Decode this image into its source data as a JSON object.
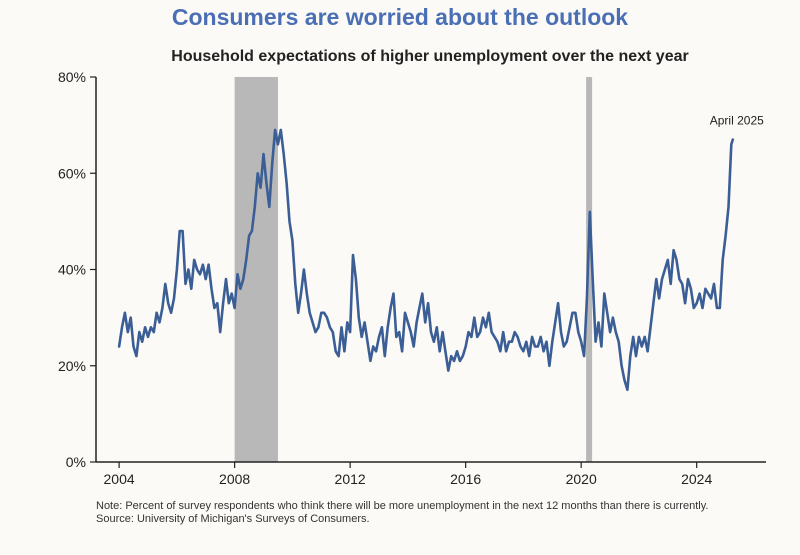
{
  "title": "Consumers are worried about the outlook",
  "subtitle": "Household expectations of higher unemployment over the next year",
  "note": "Note: Percent of survey respondents who think there will be more unemployment in the next 12 months than there is currently.",
  "source": "Source: University of Michigan's Surveys of Consumers.",
  "colors": {
    "title": "#4a6fb5",
    "line": "#3b5e96",
    "recession": "#b8b8b8",
    "axis": "#222222"
  },
  "chart_data": {
    "type": "line",
    "title": "Household expectations of higher unemployment over the next year",
    "xlabel": "",
    "ylabel": "",
    "xlim": [
      2003.2,
      2026.4
    ],
    "ylim": [
      0,
      80
    ],
    "x_ticks": [
      2004,
      2008,
      2012,
      2016,
      2020,
      2024
    ],
    "x_tick_labels": [
      "2004",
      "2008",
      "2012",
      "2016",
      "2020",
      "2024"
    ],
    "y_ticks": [
      0,
      20,
      40,
      60,
      80
    ],
    "y_tick_labels": [
      "0%",
      "20%",
      "40%",
      "60%",
      "80%"
    ],
    "grid": false,
    "shaded_periods": [
      [
        2008.0,
        2009.5
      ],
      [
        2020.17,
        2020.33
      ]
    ],
    "annotation": {
      "text": "April 2025",
      "x": 2025.25,
      "y": 67
    },
    "series": [
      {
        "values": [
          [
            2004.0,
            24
          ],
          [
            2004.1,
            28
          ],
          [
            2004.2,
            31
          ],
          [
            2004.3,
            27
          ],
          [
            2004.4,
            30
          ],
          [
            2004.5,
            24
          ],
          [
            2004.6,
            22
          ],
          [
            2004.7,
            27
          ],
          [
            2004.8,
            25
          ],
          [
            2004.9,
            28
          ],
          [
            2005.0,
            26
          ],
          [
            2005.1,
            28
          ],
          [
            2005.2,
            27
          ],
          [
            2005.3,
            31
          ],
          [
            2005.4,
            29
          ],
          [
            2005.5,
            32
          ],
          [
            2005.6,
            37
          ],
          [
            2005.7,
            33
          ],
          [
            2005.8,
            31
          ],
          [
            2005.9,
            34
          ],
          [
            2006.0,
            40
          ],
          [
            2006.1,
            48
          ],
          [
            2006.2,
            48
          ],
          [
            2006.3,
            37
          ],
          [
            2006.4,
            40
          ],
          [
            2006.5,
            36
          ],
          [
            2006.6,
            42
          ],
          [
            2006.7,
            40
          ],
          [
            2006.8,
            39
          ],
          [
            2006.9,
            41
          ],
          [
            2007.0,
            38
          ],
          [
            2007.1,
            41
          ],
          [
            2007.2,
            36
          ],
          [
            2007.3,
            32
          ],
          [
            2007.4,
            33
          ],
          [
            2007.5,
            27
          ],
          [
            2007.6,
            33
          ],
          [
            2007.7,
            38
          ],
          [
            2007.8,
            33
          ],
          [
            2007.9,
            35
          ],
          [
            2008.0,
            32
          ],
          [
            2008.1,
            39
          ],
          [
            2008.2,
            36
          ],
          [
            2008.3,
            38
          ],
          [
            2008.4,
            42
          ],
          [
            2008.5,
            47
          ],
          [
            2008.6,
            48
          ],
          [
            2008.7,
            53
          ],
          [
            2008.8,
            60
          ],
          [
            2008.9,
            57
          ],
          [
            2009.0,
            64
          ],
          [
            2009.1,
            58
          ],
          [
            2009.2,
            53
          ],
          [
            2009.3,
            62
          ],
          [
            2009.4,
            69
          ],
          [
            2009.5,
            66
          ],
          [
            2009.6,
            69
          ],
          [
            2009.7,
            64
          ],
          [
            2009.8,
            58
          ],
          [
            2009.9,
            50
          ],
          [
            2010.0,
            46
          ],
          [
            2010.1,
            37
          ],
          [
            2010.2,
            31
          ],
          [
            2010.3,
            35
          ],
          [
            2010.4,
            40
          ],
          [
            2010.5,
            35
          ],
          [
            2010.6,
            31
          ],
          [
            2010.7,
            29
          ],
          [
            2010.8,
            27
          ],
          [
            2010.9,
            28
          ],
          [
            2011.0,
            31
          ],
          [
            2011.1,
            31
          ],
          [
            2011.2,
            30
          ],
          [
            2011.3,
            28
          ],
          [
            2011.4,
            27
          ],
          [
            2011.5,
            23
          ],
          [
            2011.6,
            22
          ],
          [
            2011.7,
            28
          ],
          [
            2011.8,
            23
          ],
          [
            2011.9,
            29
          ],
          [
            2012.0,
            27
          ],
          [
            2012.1,
            43
          ],
          [
            2012.2,
            38
          ],
          [
            2012.3,
            30
          ],
          [
            2012.4,
            26
          ],
          [
            2012.5,
            29
          ],
          [
            2012.6,
            25
          ],
          [
            2012.7,
            21
          ],
          [
            2012.8,
            24
          ],
          [
            2012.9,
            23
          ],
          [
            2013.0,
            26
          ],
          [
            2013.1,
            28
          ],
          [
            2013.2,
            22
          ],
          [
            2013.3,
            28
          ],
          [
            2013.4,
            32
          ],
          [
            2013.5,
            35
          ],
          [
            2013.6,
            26
          ],
          [
            2013.7,
            27
          ],
          [
            2013.8,
            23
          ],
          [
            2013.9,
            31
          ],
          [
            2014.0,
            29
          ],
          [
            2014.1,
            27
          ],
          [
            2014.2,
            24
          ],
          [
            2014.3,
            29
          ],
          [
            2014.4,
            32
          ],
          [
            2014.5,
            35
          ],
          [
            2014.6,
            29
          ],
          [
            2014.7,
            33
          ],
          [
            2014.8,
            27
          ],
          [
            2014.9,
            25
          ],
          [
            2015.0,
            28
          ],
          [
            2015.1,
            23
          ],
          [
            2015.2,
            27
          ],
          [
            2015.3,
            23
          ],
          [
            2015.4,
            19
          ],
          [
            2015.5,
            22
          ],
          [
            2015.6,
            21
          ],
          [
            2015.7,
            23
          ],
          [
            2015.8,
            21
          ],
          [
            2015.9,
            22
          ],
          [
            2016.0,
            24
          ],
          [
            2016.1,
            27
          ],
          [
            2016.2,
            26
          ],
          [
            2016.3,
            30
          ],
          [
            2016.4,
            26
          ],
          [
            2016.5,
            27
          ],
          [
            2016.6,
            30
          ],
          [
            2016.7,
            28
          ],
          [
            2016.8,
            31
          ],
          [
            2016.9,
            27
          ],
          [
            2017.0,
            26
          ],
          [
            2017.1,
            25
          ],
          [
            2017.2,
            23
          ],
          [
            2017.3,
            27
          ],
          [
            2017.4,
            23
          ],
          [
            2017.5,
            25
          ],
          [
            2017.6,
            25
          ],
          [
            2017.7,
            27
          ],
          [
            2017.8,
            26
          ],
          [
            2017.9,
            24
          ],
          [
            2018.0,
            23
          ],
          [
            2018.1,
            25
          ],
          [
            2018.2,
            22
          ],
          [
            2018.3,
            26
          ],
          [
            2018.4,
            24
          ],
          [
            2018.5,
            24
          ],
          [
            2018.6,
            26
          ],
          [
            2018.7,
            23
          ],
          [
            2018.8,
            25
          ],
          [
            2018.9,
            20
          ],
          [
            2019.0,
            25
          ],
          [
            2019.1,
            29
          ],
          [
            2019.2,
            33
          ],
          [
            2019.3,
            27
          ],
          [
            2019.4,
            24
          ],
          [
            2019.5,
            25
          ],
          [
            2019.6,
            28
          ],
          [
            2019.7,
            31
          ],
          [
            2019.8,
            31
          ],
          [
            2019.9,
            27
          ],
          [
            2020.0,
            25
          ],
          [
            2020.1,
            22
          ],
          [
            2020.2,
            34
          ],
          [
            2020.3,
            52
          ],
          [
            2020.4,
            38
          ],
          [
            2020.5,
            25
          ],
          [
            2020.6,
            29
          ],
          [
            2020.7,
            24
          ],
          [
            2020.8,
            35
          ],
          [
            2020.9,
            31
          ],
          [
            2021.0,
            27
          ],
          [
            2021.1,
            30
          ],
          [
            2021.2,
            27
          ],
          [
            2021.3,
            25
          ],
          [
            2021.4,
            20
          ],
          [
            2021.5,
            17
          ],
          [
            2021.6,
            15
          ],
          [
            2021.7,
            22
          ],
          [
            2021.8,
            26
          ],
          [
            2021.9,
            22
          ],
          [
            2022.0,
            26
          ],
          [
            2022.1,
            24
          ],
          [
            2022.2,
            26
          ],
          [
            2022.3,
            23
          ],
          [
            2022.4,
            28
          ],
          [
            2022.5,
            33
          ],
          [
            2022.6,
            38
          ],
          [
            2022.7,
            34
          ],
          [
            2022.8,
            38
          ],
          [
            2022.9,
            40
          ],
          [
            2023.0,
            42
          ],
          [
            2023.1,
            37
          ],
          [
            2023.2,
            44
          ],
          [
            2023.3,
            42
          ],
          [
            2023.4,
            38
          ],
          [
            2023.5,
            37
          ],
          [
            2023.6,
            33
          ],
          [
            2023.7,
            38
          ],
          [
            2023.8,
            36
          ],
          [
            2023.9,
            32
          ],
          [
            2024.0,
            33
          ],
          [
            2024.1,
            35
          ],
          [
            2024.2,
            32
          ],
          [
            2024.3,
            36
          ],
          [
            2024.4,
            35
          ],
          [
            2024.5,
            34
          ],
          [
            2024.6,
            37
          ],
          [
            2024.7,
            32
          ],
          [
            2024.8,
            32
          ],
          [
            2024.9,
            42
          ],
          [
            2025.0,
            47
          ],
          [
            2025.1,
            53
          ],
          [
            2025.2,
            66
          ],
          [
            2025.25,
            67
          ]
        ]
      }
    ]
  }
}
